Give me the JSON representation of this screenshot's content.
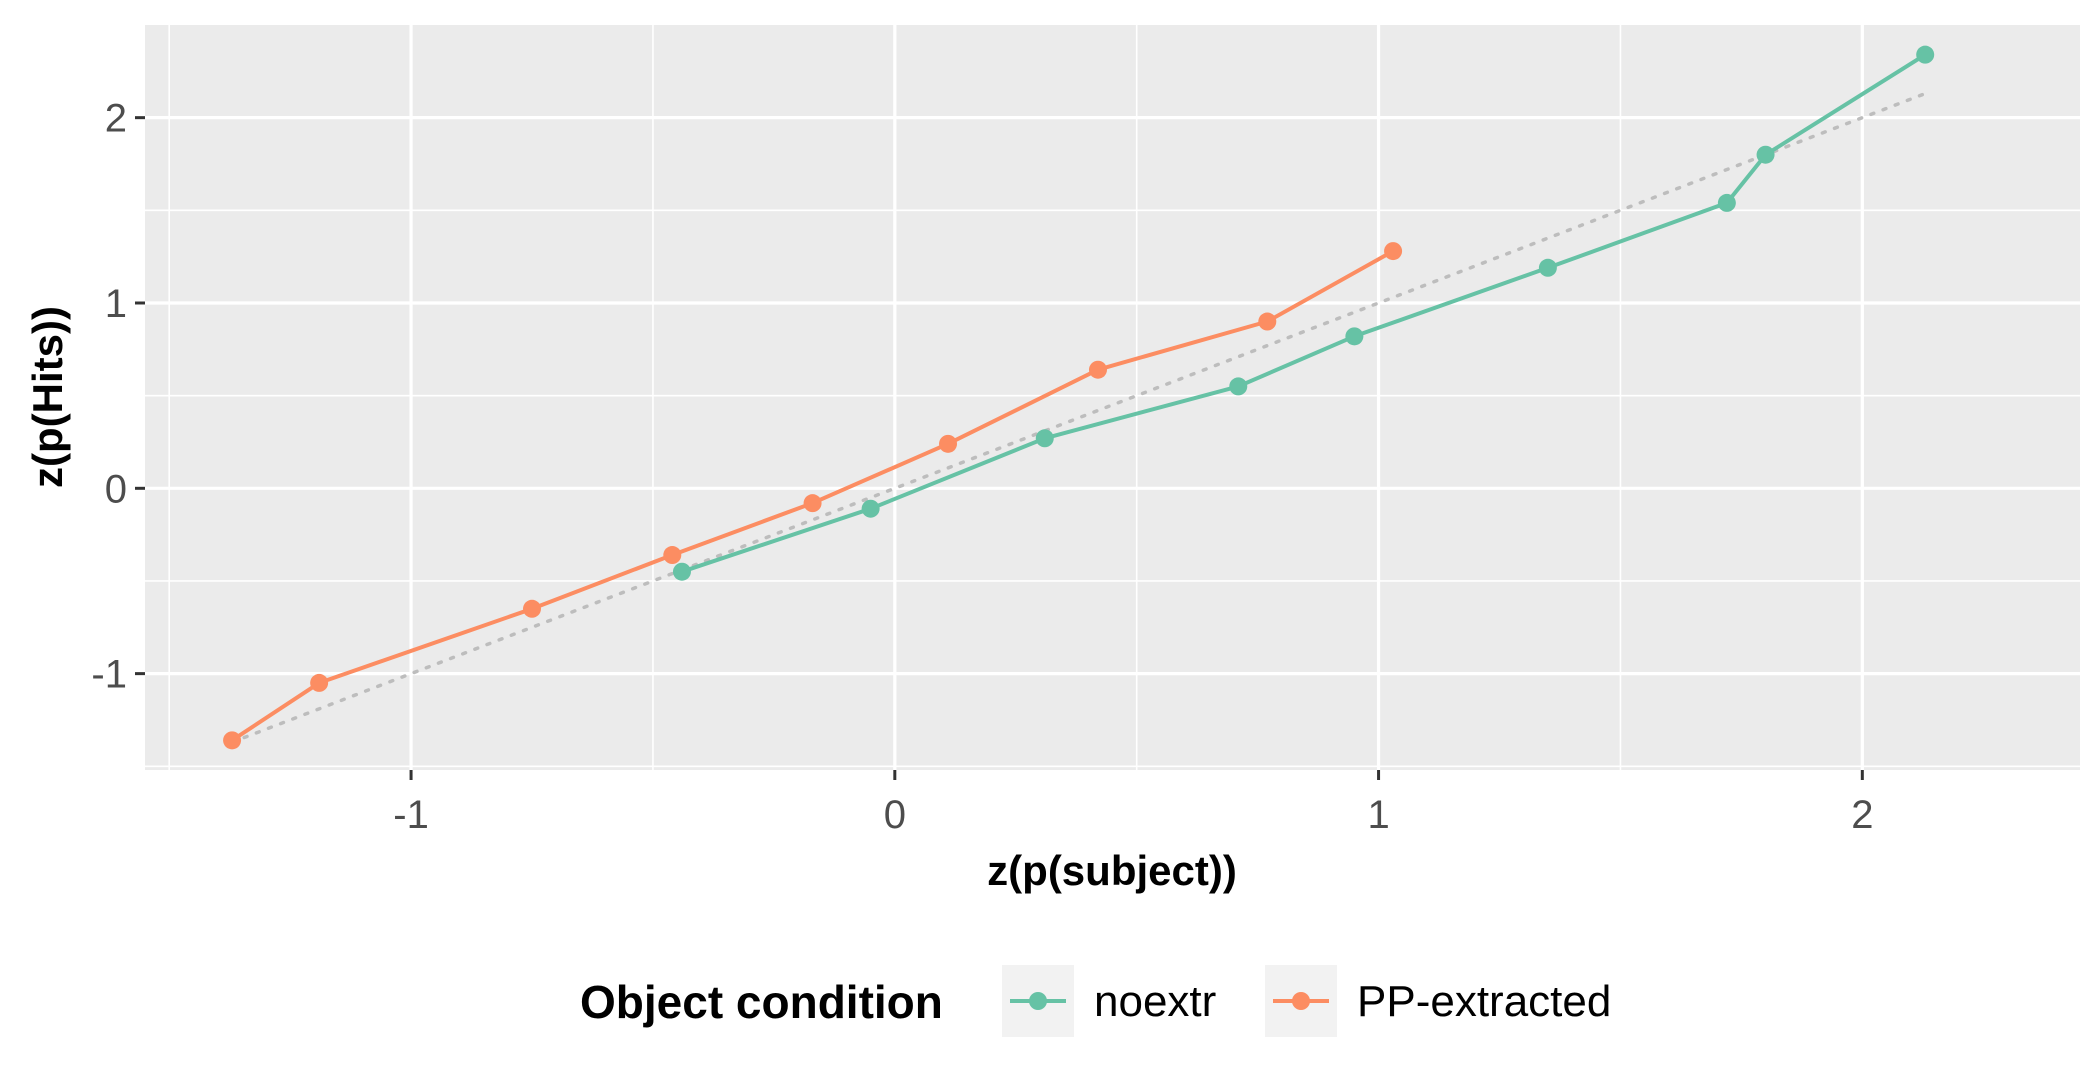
{
  "chart_data": {
    "type": "line",
    "xlabel": "z(p(subject))",
    "ylabel": "z(p(Hits))",
    "xlim": [
      -1.55,
      2.45
    ],
    "ylim": [
      -1.52,
      2.5
    ],
    "x_ticks": [
      -1,
      0,
      1,
      2
    ],
    "x_tick_labels": [
      "-1",
      "0",
      "1",
      "2"
    ],
    "y_ticks": [
      -1,
      0,
      1,
      2
    ],
    "y_tick_labels": [
      "-1",
      "0",
      "1",
      "2"
    ],
    "grid": true,
    "legend": {
      "title": "Object condition",
      "position": "bottom"
    },
    "series": [
      {
        "name": "noextr",
        "color": "#66c2a5",
        "x": [
          -0.44,
          -0.05,
          0.31,
          0.71,
          0.95,
          1.35,
          1.72,
          1.8,
          2.13
        ],
        "y": [
          -0.45,
          -0.11,
          0.27,
          0.55,
          0.82,
          1.19,
          1.54,
          1.8,
          2.34
        ]
      },
      {
        "name": "PP-extracted",
        "color": "#fc8d62",
        "x": [
          -1.37,
          -1.19,
          -0.75,
          -0.46,
          -0.17,
          0.11,
          0.42,
          0.77,
          1.03
        ],
        "y": [
          -1.36,
          -1.05,
          -0.65,
          -0.36,
          -0.08,
          0.24,
          0.64,
          0.9,
          1.28
        ]
      }
    ],
    "reference_line": {
      "style": "dotted",
      "color": "#bdbdbd",
      "x": [
        -1.37,
        2.13
      ],
      "y": [
        -1.37,
        2.13
      ]
    },
    "colors": {
      "panel": "#ebebeb",
      "grid": "#ffffff"
    }
  }
}
